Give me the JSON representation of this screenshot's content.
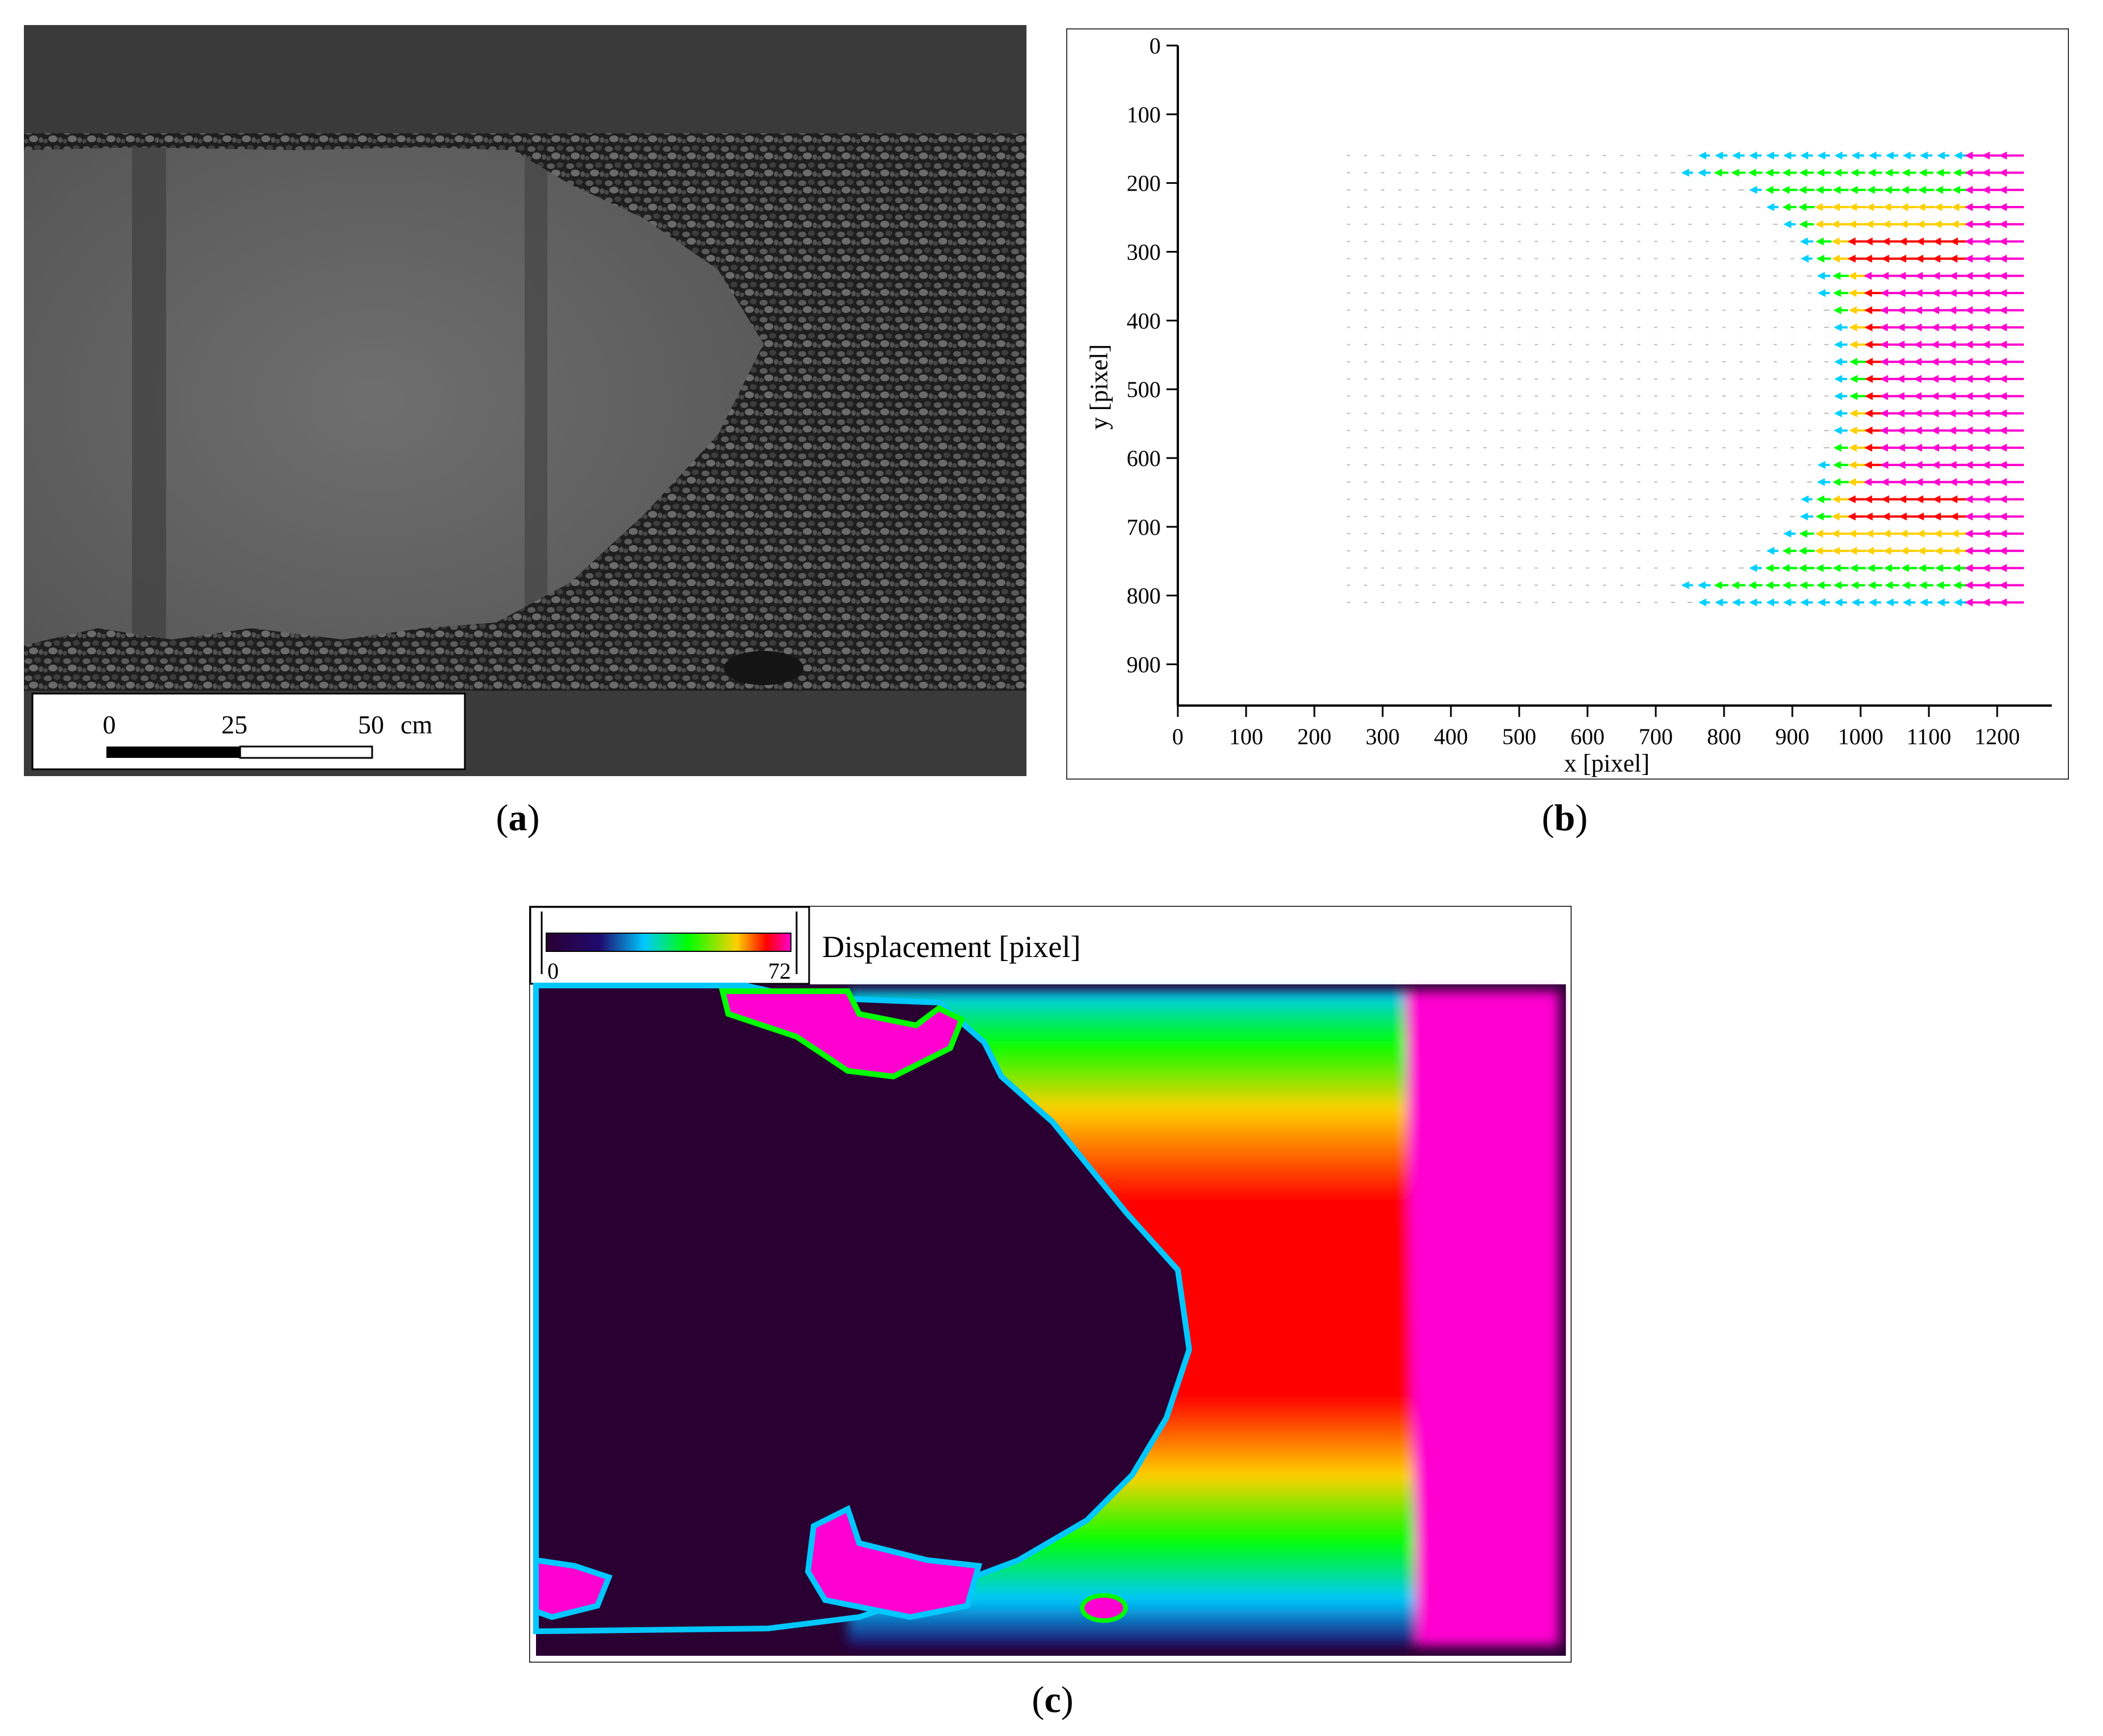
{
  "panel_a": {
    "caption_letter": "a",
    "scale_bar": {
      "ticks": [
        "0",
        "25",
        "50"
      ],
      "unit": "cm"
    }
  },
  "panel_b": {
    "caption_letter": "b"
  },
  "panel_c": {
    "caption_letter": "c",
    "colorbar": {
      "min_label": "0",
      "max_label": "72",
      "title": "Displacement [pixel]"
    },
    "colors": [
      "#2a0033",
      "#1f0a6e",
      "#00c8ff",
      "#00ff00",
      "#ffd000",
      "#ff0000",
      "#ff00d0"
    ]
  },
  "chart_data": {
    "type": "quiver",
    "xlabel": "x [pixel]",
    "ylabel": "y [pixel]",
    "xlim": [
      0,
      1280
    ],
    "ylim": [
      960,
      0
    ],
    "xticks": [
      "0",
      "100",
      "200",
      "300",
      "400",
      "500",
      "600",
      "700",
      "800",
      "900",
      "1000",
      "1100",
      "1200"
    ],
    "yticks": [
      "0",
      "100",
      "200",
      "300",
      "400",
      "500",
      "600",
      "700",
      "800",
      "900"
    ],
    "grid": false,
    "vector_field": {
      "x_range": [
        250,
        1230
      ],
      "y_range": [
        160,
        810
      ],
      "spacing": 25,
      "dominant_direction": "left (negative x)",
      "max_magnitude": 72,
      "color_scale": [
        "#00d0ff",
        "#00ff00",
        "#ffd000",
        "#ff0000",
        "#ff00d0"
      ]
    }
  }
}
